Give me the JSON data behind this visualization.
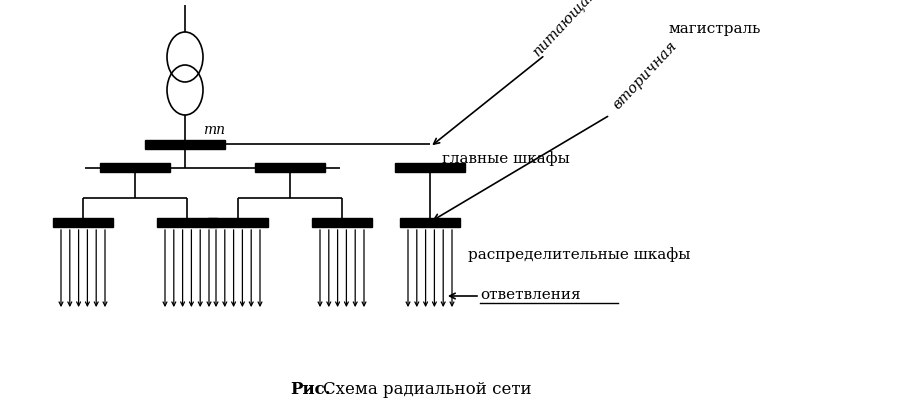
{
  "title_bold": "Рис.",
  "title_normal": "  Схема радиальной сети",
  "label_magistral": "магистраль",
  "label_pitayushchaya": "питающая",
  "label_vtorichnaya": "вторичная",
  "label_glavnye": "главные шкафы",
  "label_raspredelitelnye": "распределительные шкафы",
  "label_otvetveniya": "ответвления",
  "label_tp": "тп",
  "bg_color": "#ffffff",
  "line_color": "#000000",
  "bar_color": "#000000",
  "figsize": [
    9.2,
    4.04
  ],
  "dpi": 100
}
